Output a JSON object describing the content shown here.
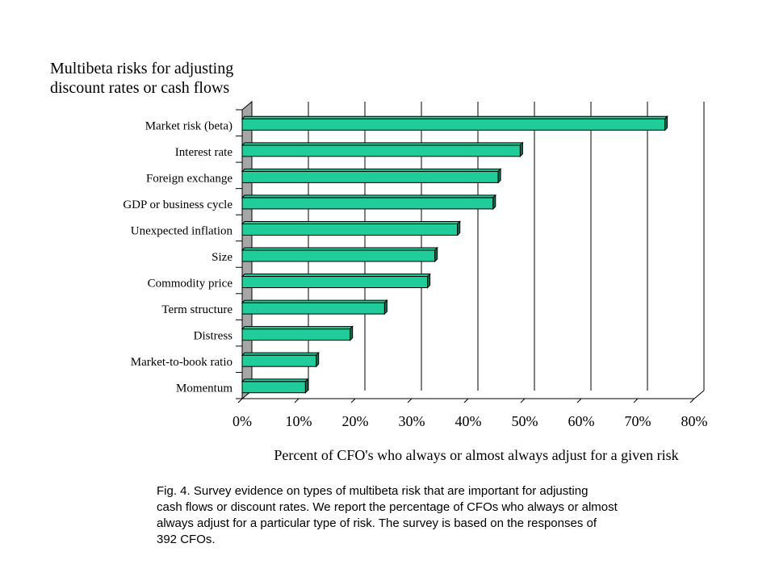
{
  "title_lines": [
    "Multibeta risks for adjusting",
    "discount rates or cash flows"
  ],
  "caption_lines": [
    "Fig. 4.  Survey evidence on types of multibeta risk that are important for adjusting",
    "cash flows or discount rates. We report the percentage of CFOs who always or almost",
    "always adjust for a particular type of risk. The survey is based on the responses of",
    "392 CFOs."
  ],
  "chart_data": {
    "type": "bar",
    "orientation": "horizontal",
    "style": "3d",
    "title": "Multibeta risks for adjusting discount rates or cash flows",
    "xlabel": "Percent of CFO's who always or almost always adjust for a given risk",
    "ylabel": "",
    "xlim": [
      0,
      80
    ],
    "x_ticks": [
      "0%",
      "10%",
      "20%",
      "30%",
      "40%",
      "50%",
      "60%",
      "70%",
      "80%"
    ],
    "categories": [
      "Market risk (beta)",
      "Interest rate",
      "Foreign exchange",
      "GDP or business cycle",
      "Unexpected inflation",
      "Size",
      "Commodity price",
      "Term structure",
      "Distress",
      "Market-to-book ratio",
      "Momentum"
    ],
    "values": [
      74.8,
      49.2,
      45.3,
      44.4,
      38.1,
      34.1,
      32.8,
      25.2,
      19.1,
      13.1,
      11.2
    ],
    "bar_color": "#1fcc9a",
    "grid": true,
    "legend": "none"
  }
}
